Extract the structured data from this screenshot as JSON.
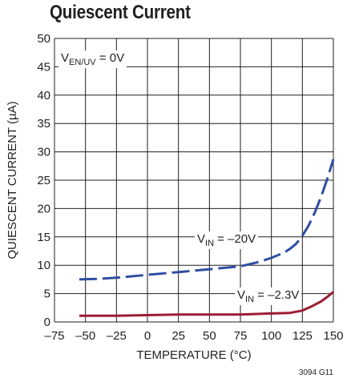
{
  "chart_data": {
    "type": "line",
    "title": "Quiescent Current",
    "xlabel": "TEMPERATURE (°C)",
    "ylabel": "QUIESCENT CURRENT (µA)",
    "xlim": [
      -75,
      150
    ],
    "ylim": [
      0,
      50
    ],
    "x_ticks": [
      "–75",
      "–50",
      "–25",
      "0",
      "25",
      "50",
      "75",
      "100",
      "125",
      "150"
    ],
    "y_ticks": [
      "0",
      "5",
      "10",
      "15",
      "20",
      "25",
      "30",
      "35",
      "40",
      "45",
      "50"
    ],
    "grid": true,
    "condition_label": {
      "main": "V",
      "sub": "EN/UV",
      "rest": " = 0V"
    },
    "series": [
      {
        "name": "VIN = –20V",
        "label": {
          "main": "V",
          "sub": "IN",
          "rest": " = –20V"
        },
        "color": "#2e4ea1",
        "dash": true,
        "x": [
          -55,
          -40,
          -25,
          0,
          25,
          50,
          75,
          90,
          100,
          110,
          115,
          120,
          125,
          130,
          135,
          140,
          145,
          150
        ],
        "y": [
          7.5,
          7.6,
          7.8,
          8.3,
          8.8,
          9.3,
          9.8,
          10.6,
          11.3,
          12.2,
          12.9,
          13.8,
          15.2,
          17.0,
          19.3,
          22.0,
          25.2,
          28.7
        ]
      },
      {
        "name": "VIN = –2.3V",
        "label": {
          "main": "V",
          "sub": "IN",
          "rest": " = –2.3V"
        },
        "color": "#9c1c33",
        "dash": false,
        "x": [
          -55,
          -40,
          -25,
          0,
          25,
          50,
          75,
          100,
          115,
          125,
          132,
          140,
          145,
          150
        ],
        "y": [
          1.1,
          1.1,
          1.1,
          1.2,
          1.3,
          1.3,
          1.3,
          1.5,
          1.6,
          2.0,
          2.7,
          3.6,
          4.4,
          5.3
        ]
      }
    ]
  },
  "footer_ref": "3094 G11"
}
